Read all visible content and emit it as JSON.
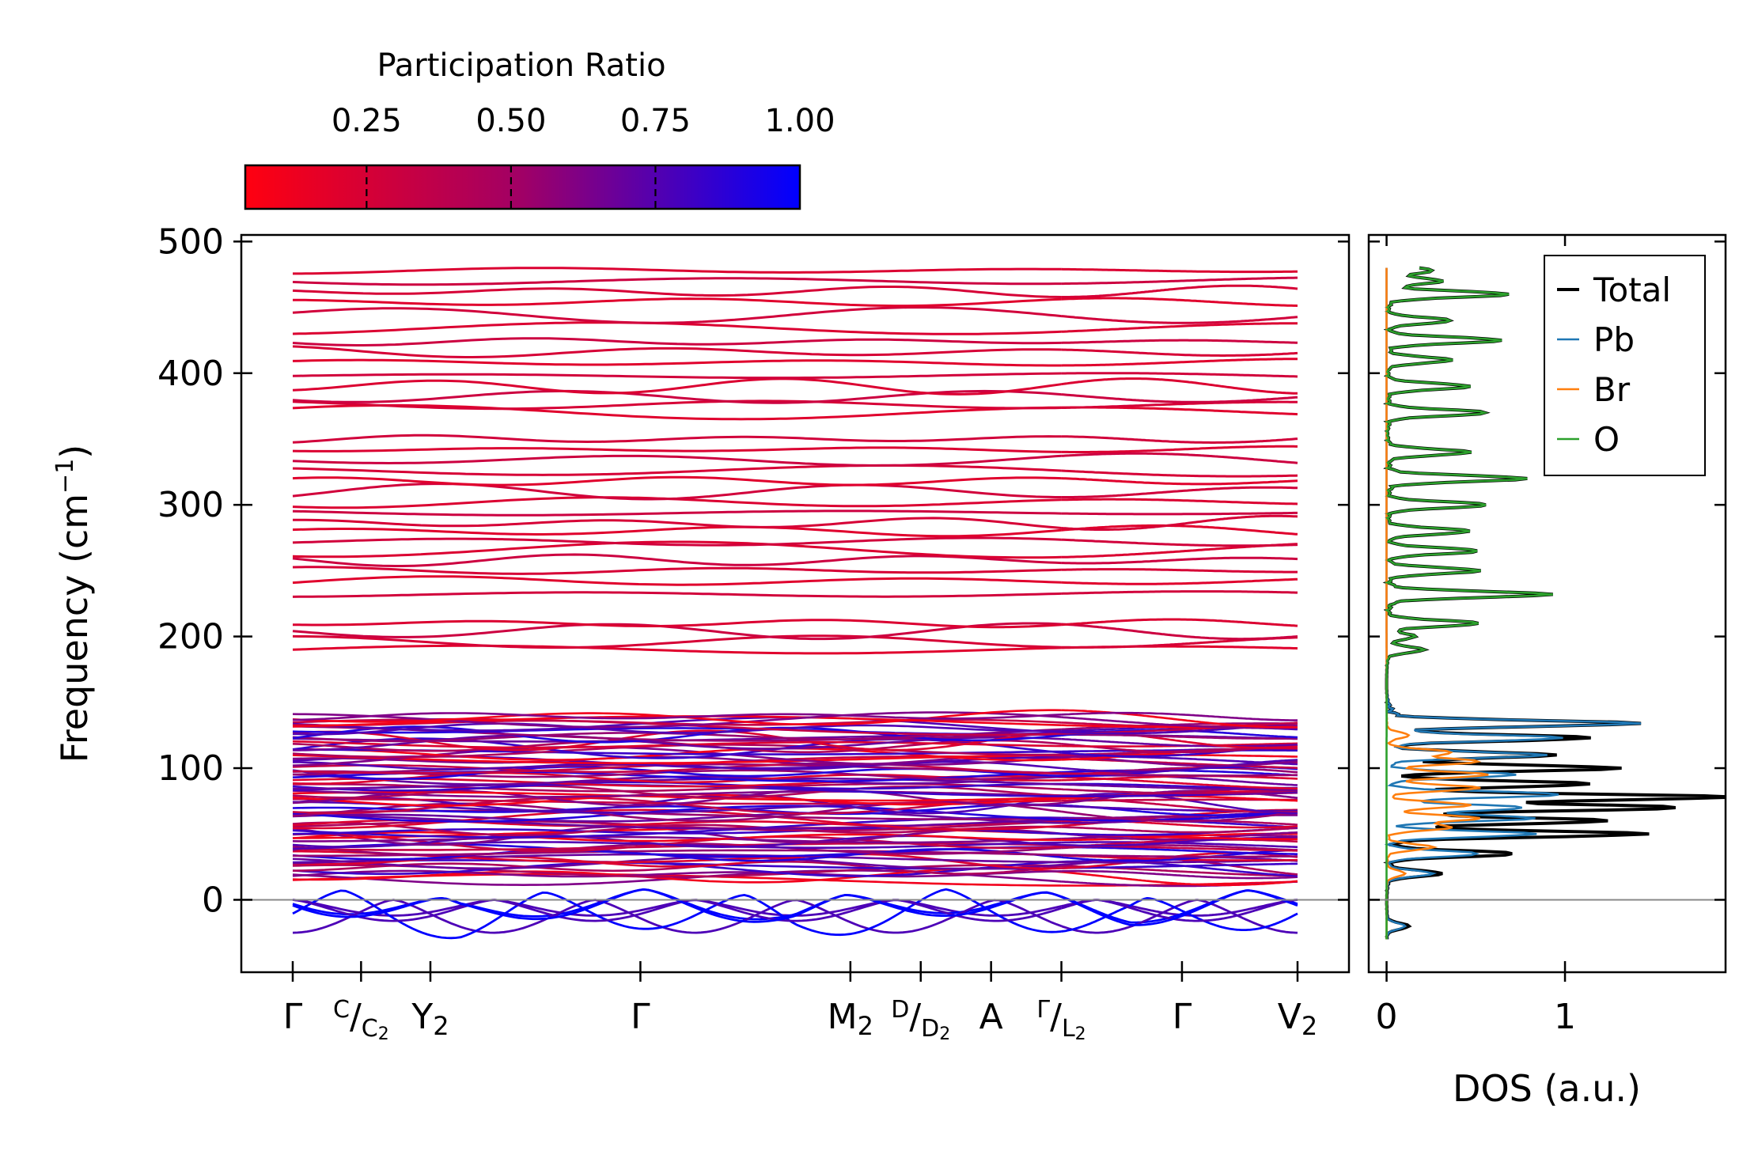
{
  "colorbar": {
    "title": "Participation Ratio",
    "ticks": [
      0.25,
      0.5,
      0.75,
      1.0
    ],
    "tick_labels": [
      "0.25",
      "0.50",
      "0.75",
      "1.00"
    ],
    "range": [
      0.04,
      1.0
    ],
    "color_low": "#ff0010",
    "color_high": "#0000ff"
  },
  "chart_data": [
    {
      "type": "line",
      "name": "phonon-band-structure",
      "ylabel": "Frequency (cm⁻¹)",
      "ylabel_base": "Frequency (cm",
      "ylabel_sup": "−1",
      "ylabel_close": ")",
      "ylim": [
        -55,
        505
      ],
      "y_ticks": [
        0,
        100,
        200,
        300,
        400,
        500
      ],
      "y_tick_labels": [
        "0",
        "100",
        "200",
        "300",
        "400",
        "500"
      ],
      "x_kpoints": [
        {
          "label": "Γ",
          "pos": 0.0
        },
        {
          "label": "C/C₂",
          "pos": 0.068,
          "main": "C",
          "sub": "C",
          "sub2": "2"
        },
        {
          "label": "Y₂",
          "pos": 0.137,
          "main": "Y",
          "sub": "2"
        },
        {
          "label": "Γ",
          "pos": 0.346
        },
        {
          "label": "M₂",
          "pos": 0.555,
          "main": "M",
          "sub": "2"
        },
        {
          "label": "D/D₂",
          "pos": 0.625,
          "main": "D",
          "sub": "D",
          "sub2": "2"
        },
        {
          "label": "A",
          "pos": 0.695
        },
        {
          "label": "Γ/L₂",
          "pos": 0.765,
          "main": "Γ",
          "sub": "L",
          "sub2": "2"
        },
        {
          "label": "Γ",
          "pos": 0.885
        },
        {
          "label": "V₂",
          "pos": 1.0,
          "main": "V",
          "sub": "2"
        }
      ],
      "segment_break": 0.765,
      "high_bands": [
        190,
        196,
        204,
        210,
        232,
        242,
        250,
        258,
        266,
        272,
        280,
        286,
        294,
        302,
        310,
        318,
        326,
        334,
        342,
        350,
        370,
        376,
        382,
        390,
        398,
        408,
        416,
        424,
        434,
        444,
        454,
        462,
        470,
        478
      ],
      "mid_bands": [
        15,
        22,
        28,
        34,
        40,
        46,
        52,
        58,
        64,
        70,
        76,
        82,
        88,
        94,
        100,
        106,
        112,
        118,
        124,
        130,
        135
      ],
      "acoustic_minima": [
        -12,
        -18,
        -25,
        -30,
        -16,
        -20
      ]
    },
    {
      "type": "line",
      "name": "density-of-states",
      "xlabel": "DOS (a.u.)",
      "xlim": [
        -0.1,
        1.9
      ],
      "x_ticks": [
        0,
        1
      ],
      "x_tick_labels": [
        "0",
        "1"
      ],
      "ylim": [
        -55,
        505
      ],
      "series": [
        {
          "name": "Total",
          "color": "#000000",
          "peaks": [
            [
              -20,
              0.12
            ],
            [
              20,
              0.3
            ],
            [
              35,
              0.7
            ],
            [
              50,
              1.4
            ],
            [
              60,
              1.2
            ],
            [
              70,
              1.6
            ],
            [
              78,
              1.85
            ],
            [
              88,
              1.1
            ],
            [
              100,
              1.25
            ],
            [
              110,
              0.9
            ],
            [
              123,
              1.1
            ],
            [
              134,
              1.35
            ],
            [
              190,
              0.2
            ],
            [
              200,
              0.15
            ],
            [
              210,
              0.5
            ],
            [
              232,
              0.88
            ],
            [
              250,
              0.5
            ],
            [
              265,
              0.5
            ],
            [
              280,
              0.45
            ],
            [
              300,
              0.55
            ],
            [
              320,
              0.75
            ],
            [
              340,
              0.45
            ],
            [
              370,
              0.55
            ],
            [
              390,
              0.45
            ],
            [
              410,
              0.35
            ],
            [
              425,
              0.62
            ],
            [
              440,
              0.35
            ],
            [
              460,
              0.66
            ],
            [
              470,
              0.3
            ],
            [
              478,
              0.25
            ]
          ]
        },
        {
          "name": "Pb",
          "color": "#1f77b4",
          "peaks": [
            [
              -20,
              0.1
            ],
            [
              20,
              0.25
            ],
            [
              35,
              0.5
            ],
            [
              50,
              0.8
            ],
            [
              62,
              0.8
            ],
            [
              70,
              0.75
            ],
            [
              80,
              0.95
            ],
            [
              95,
              0.7
            ],
            [
              110,
              0.85
            ],
            [
              123,
              0.95
            ],
            [
              134,
              1.35
            ]
          ]
        },
        {
          "name": "Br",
          "color": "#ff7f0e",
          "peaks": [
            [
              20,
              0.1
            ],
            [
              40,
              0.25
            ],
            [
              55,
              0.35
            ],
            [
              62,
              0.5
            ],
            [
              72,
              0.45
            ],
            [
              85,
              0.5
            ],
            [
              95,
              0.55
            ],
            [
              105,
              0.5
            ],
            [
              112,
              0.35
            ],
            [
              125,
              0.12
            ]
          ]
        },
        {
          "name": "O",
          "color": "#2ca02c",
          "peaks": [
            [
              190,
              0.2
            ],
            [
              200,
              0.15
            ],
            [
              210,
              0.5
            ],
            [
              232,
              0.88
            ],
            [
              250,
              0.5
            ],
            [
              265,
              0.5
            ],
            [
              280,
              0.45
            ],
            [
              300,
              0.55
            ],
            [
              320,
              0.75
            ],
            [
              340,
              0.45
            ],
            [
              370,
              0.55
            ],
            [
              390,
              0.45
            ],
            [
              410,
              0.35
            ],
            [
              425,
              0.62
            ],
            [
              440,
              0.35
            ],
            [
              460,
              0.66
            ],
            [
              470,
              0.3
            ],
            [
              478,
              0.25
            ]
          ]
        }
      ],
      "legend_position": "top-right"
    }
  ]
}
